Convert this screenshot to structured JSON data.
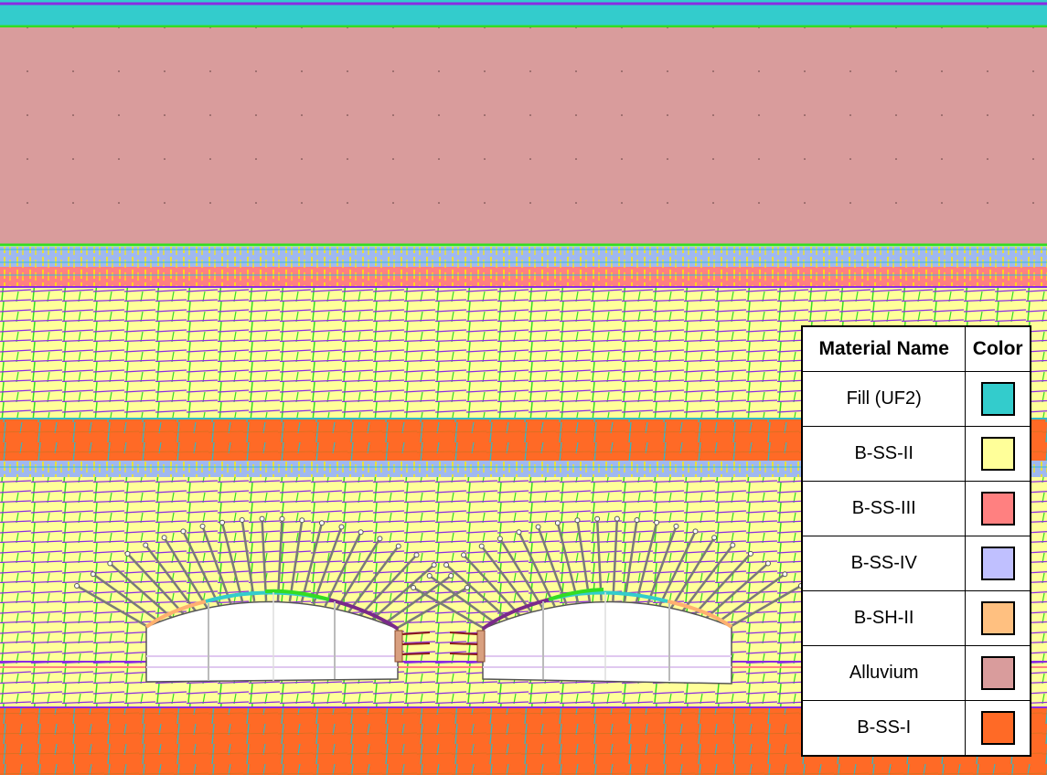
{
  "legend": {
    "header_name": "Material Name",
    "header_color": "Color",
    "materials": [
      {
        "name": "Fill (UF2)",
        "color": "#33cccc"
      },
      {
        "name": "B-SS-II",
        "color": "#ffff99"
      },
      {
        "name": "B-SS-III",
        "color": "#ff8080"
      },
      {
        "name": "B-SS-IV",
        "color": "#c0c0ff"
      },
      {
        "name": "B-SH-II",
        "color": "#ffc080"
      },
      {
        "name": "Alluvium",
        "color": "#d99c9c"
      },
      {
        "name": "B-SS-I",
        "color": "#ff6a26"
      }
    ]
  },
  "scene_colors": {
    "joint_green": "#33dd22",
    "layer_purple": "#8a2be2",
    "bolt_grey": "#7a7a7a",
    "tunnel_fill": "#ffffff",
    "joint_yellow": "#ffee00",
    "joint_cyan": "#33bbdd"
  }
}
